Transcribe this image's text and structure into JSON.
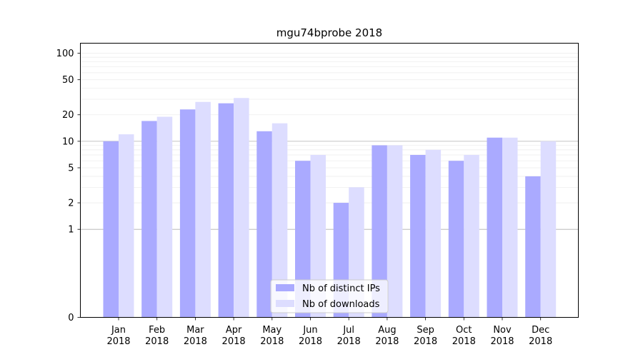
{
  "chart_data": {
    "type": "bar",
    "title": "mgu74bprobe 2018",
    "xlabel": "",
    "ylabel": "",
    "yscale": "symlog",
    "ylim": [
      0,
      130
    ],
    "yticks": [
      0,
      1,
      2,
      5,
      10,
      20,
      50,
      100
    ],
    "categories": [
      [
        "Jan",
        "2018"
      ],
      [
        "Feb",
        "2018"
      ],
      [
        "Mar",
        "2018"
      ],
      [
        "Apr",
        "2018"
      ],
      [
        "May",
        "2018"
      ],
      [
        "Jun",
        "2018"
      ],
      [
        "Jul",
        "2018"
      ],
      [
        "Aug",
        "2018"
      ],
      [
        "Sep",
        "2018"
      ],
      [
        "Oct",
        "2018"
      ],
      [
        "Nov",
        "2018"
      ],
      [
        "Dec",
        "2018"
      ]
    ],
    "series": [
      {
        "name": "Nb of distinct IPs",
        "color": "#aaaaff",
        "values": [
          10,
          17,
          23,
          27,
          13,
          6,
          2,
          9,
          7,
          6,
          11,
          4
        ]
      },
      {
        "name": "Nb of downloads",
        "color": "#ddddff",
        "values": [
          12,
          19,
          28,
          31,
          16,
          7,
          3,
          9,
          8,
          7,
          11,
          10
        ]
      }
    ],
    "legend_position": "lower-center"
  }
}
